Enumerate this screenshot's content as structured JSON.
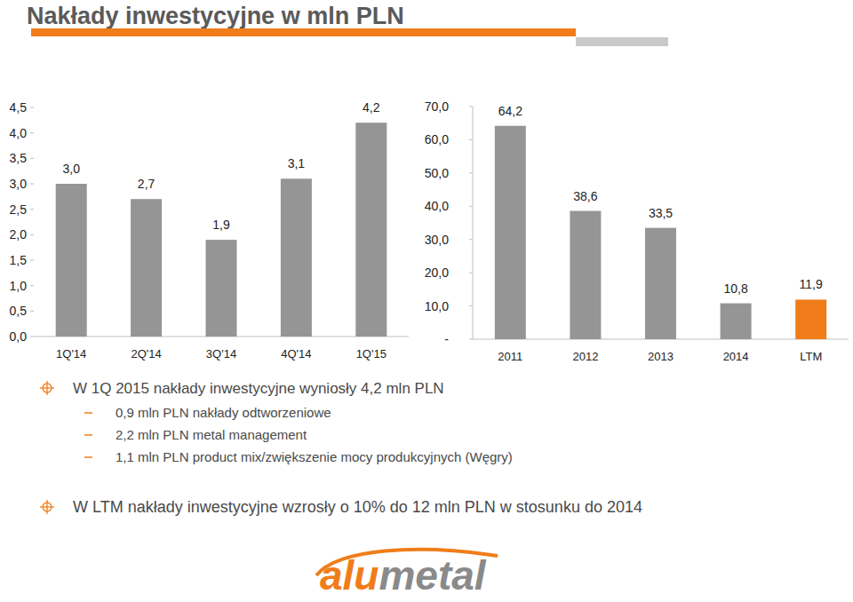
{
  "page": {
    "title": "Nakłady inwestycyjne w mln PLN",
    "bullets": [
      {
        "text": "W 1Q 2015 nakłady inwestycyjne wyniosły 4,2 mln PLN",
        "items": [
          "0,9 mln PLN nakłady odtworzeniowe",
          "2,2 mln PLN metal management",
          "1,1 mln PLN product mix/zwiększenie mocy produkcyjnych (Węgry)"
        ]
      },
      {
        "text": "W LTM nakłady inwestycyjne wzrosły o 10% do 12 mln PLN w stosunku do 2014"
      }
    ],
    "logo": [
      "alu",
      "metal"
    ]
  },
  "chart_data": [
    {
      "type": "bar",
      "categories": [
        "1Q'14",
        "2Q'14",
        "3Q'14",
        "4Q'14",
        "1Q'15"
      ],
      "values": [
        3.0,
        2.7,
        1.9,
        3.1,
        4.2
      ],
      "value_labels": [
        "3,0",
        "2,7",
        "1,9",
        "3,1",
        "4,2"
      ],
      "color": "#959595",
      "ylim": [
        0,
        4.5
      ],
      "yticks": [
        {
          "value": 0,
          "label": "0,0"
        },
        {
          "value": 0.5,
          "label": "0,5"
        },
        {
          "value": 1,
          "label": "1,0"
        },
        {
          "value": 1.5,
          "label": "1,5"
        },
        {
          "value": 2,
          "label": "2,0"
        },
        {
          "value": 2.5,
          "label": "2,5"
        },
        {
          "value": 3,
          "label": "3,0"
        },
        {
          "value": 3.5,
          "label": "3,5"
        },
        {
          "value": 4,
          "label": "4,0"
        },
        {
          "value": 4.5,
          "label": "4,5"
        }
      ],
      "grid": false,
      "data_labels": true
    },
    {
      "type": "bar",
      "categories": [
        "2011",
        "2012",
        "2013",
        "2014",
        "LTM"
      ],
      "values": [
        64.2,
        38.6,
        33.5,
        10.8,
        11.9
      ],
      "value_labels": [
        "64,2",
        "38,6",
        "33,5",
        "10,8",
        "11,9"
      ],
      "colors": [
        "#959595",
        "#959595",
        "#959595",
        "#959595",
        "#f07d1a"
      ],
      "ylim": [
        0,
        70
      ],
      "yticks": [
        {
          "value": 0,
          "label": "-"
        },
        {
          "value": 10,
          "label": "10,0"
        },
        {
          "value": 20,
          "label": "20,0"
        },
        {
          "value": 30,
          "label": "30,0"
        },
        {
          "value": 40,
          "label": "40,0"
        },
        {
          "value": 50,
          "label": "50,0"
        },
        {
          "value": 60,
          "label": "60,0"
        },
        {
          "value": 70,
          "label": "70,0"
        }
      ],
      "grid": false,
      "data_labels": true
    }
  ]
}
